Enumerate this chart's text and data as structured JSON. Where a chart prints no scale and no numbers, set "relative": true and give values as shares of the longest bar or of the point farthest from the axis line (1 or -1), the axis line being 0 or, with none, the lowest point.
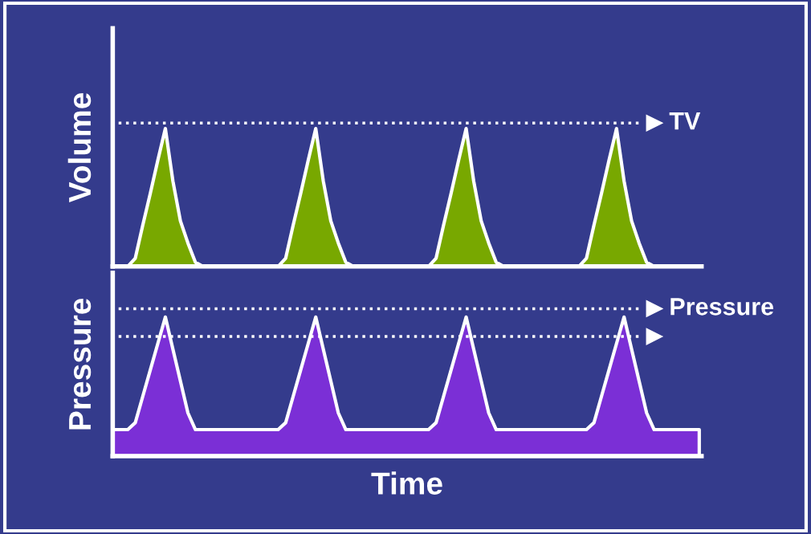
{
  "chart_data": [
    {
      "type": "area",
      "relative": true,
      "ylabel": "Volume",
      "categories": [
        null,
        null,
        null,
        null,
        null,
        null,
        null,
        null,
        null,
        null,
        null,
        null,
        null,
        null,
        null,
        null,
        null,
        null,
        null,
        null,
        null,
        null,
        null,
        null,
        null,
        null,
        null,
        null,
        null,
        null,
        null,
        null,
        null,
        null,
        null,
        null,
        null,
        null,
        null,
        null,
        null,
        null,
        null,
        null,
        null,
        null,
        null,
        null,
        null,
        null,
        null,
        null,
        null,
        null,
        null,
        null,
        null,
        null,
        null,
        null,
        null,
        null,
        null,
        null,
        null,
        null,
        null,
        null,
        null,
        null,
        null,
        null,
        null,
        null,
        null,
        null,
        null,
        null,
        null
      ],
      "series": [
        {
          "color": "#78a800",
          "values": [
            0,
            0,
            0,
            0.06,
            0.3,
            0.53,
            0.77,
            1,
            0.62,
            0.33,
            0.17,
            0.03,
            0,
            0,
            0,
            0,
            0,
            0,
            0,
            0,
            0,
            0,
            0,
            0.06,
            0.3,
            0.53,
            0.77,
            1,
            0.62,
            0.33,
            0.17,
            0.03,
            0,
            0,
            0,
            0,
            0,
            0,
            0,
            0,
            0,
            0,
            0,
            0.06,
            0.3,
            0.53,
            0.77,
            1,
            0.62,
            0.33,
            0.17,
            0.03,
            0,
            0,
            0,
            0,
            0,
            0,
            0,
            0,
            0,
            0,
            0,
            0.06,
            0.3,
            0.53,
            0.77,
            1,
            0.62,
            0.33,
            0.17,
            0.03,
            0,
            0,
            0,
            0,
            0,
            0,
            0
          ]
        }
      ],
      "ref_lines": [
        {
          "axis": "y",
          "value": 1.04,
          "label": "TV",
          "color": "#ffffff",
          "line_style": "dotted"
        }
      ]
    },
    {
      "type": "area",
      "relative": true,
      "ylabel": "Pressure",
      "xlabel": "Time",
      "categories": [
        null,
        null,
        null,
        null,
        null,
        null,
        null,
        null,
        null,
        null,
        null,
        null,
        null,
        null,
        null,
        null,
        null,
        null,
        null,
        null,
        null,
        null,
        null,
        null,
        null,
        null,
        null,
        null,
        null,
        null,
        null,
        null,
        null,
        null,
        null,
        null,
        null,
        null,
        null,
        null,
        null,
        null,
        null,
        null,
        null,
        null,
        null,
        null,
        null,
        null,
        null,
        null,
        null,
        null,
        null,
        null,
        null,
        null,
        null,
        null,
        null,
        null,
        null,
        null,
        null,
        null,
        null,
        null,
        null,
        null,
        null,
        null,
        null,
        null,
        null,
        null,
        null,
        null,
        null
      ],
      "series": [
        {
          "color": "#7b2fd6",
          "values": [
            0.19,
            0.19,
            0.19,
            0.24,
            0.43,
            0.62,
            0.81,
            1,
            0.77,
            0.54,
            0.31,
            0.19,
            0.19,
            0.19,
            0.19,
            0.19,
            0.19,
            0.19,
            0.19,
            0.19,
            0.19,
            0.19,
            0.19,
            0.24,
            0.43,
            0.62,
            0.81,
            1,
            0.77,
            0.54,
            0.31,
            0.19,
            0.19,
            0.19,
            0.19,
            0.19,
            0.19,
            0.19,
            0.19,
            0.19,
            0.19,
            0.19,
            0.19,
            0.24,
            0.43,
            0.62,
            0.81,
            1,
            0.77,
            0.54,
            0.31,
            0.19,
            0.19,
            0.19,
            0.19,
            0.19,
            0.19,
            0.19,
            0.19,
            0.19,
            0.19,
            0.19,
            0.19,
            0.19,
            0.24,
            0.43,
            0.62,
            0.81,
            1,
            0.77,
            0.54,
            0.31,
            0.19,
            0.19,
            0.19,
            0.19,
            0.19,
            0.19,
            0.19
          ]
        }
      ],
      "ref_lines": [
        {
          "axis": "y",
          "value": 1.06,
          "label": "Pressure",
          "color": "#ffffff",
          "line_style": "dotted"
        },
        {
          "axis": "y",
          "value": 0.86,
          "label": null,
          "color": "#ffffff",
          "line_style": "dotted"
        }
      ]
    }
  ]
}
